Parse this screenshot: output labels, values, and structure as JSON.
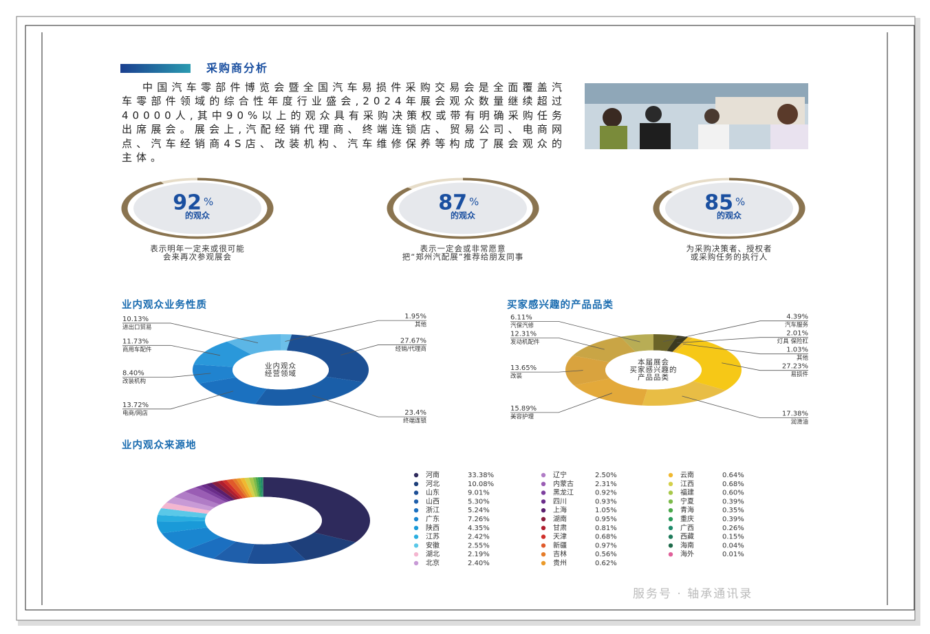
{
  "header": {
    "title": "采购商分析"
  },
  "intro": {
    "text": "中国汽车零部件博览会暨全国汽车易损件采购交易会是全面覆盖汽车零部件领域的综合性年度行业盛会,2024年展会观众数量继续超过40000人,其中90%以上的观众具有采购决策权或带有明确采购任务出席展会。展会上,汽配经销代理商、终端连锁店、贸易公司、电商网点、汽车经销商4S店、改装机构、汽车维修保养等构成了展会观众的主体。"
  },
  "stats": [
    {
      "value": 92,
      "unit": "%",
      "label": "的观众",
      "caption": [
        "表示明年一定来或很可能",
        "会来再次参观展会"
      ]
    },
    {
      "value": 87,
      "unit": "%",
      "label": "的观众",
      "caption": [
        "表示一定会或非常愿意",
        "把“郑州汽配展”推荐给朋友同事"
      ]
    },
    {
      "value": 85,
      "unit": "%",
      "label": "的观众",
      "caption": [
        "为采购决策者、授权者",
        "或采购任务的执行人"
      ]
    }
  ],
  "chart_data": [
    {
      "type": "donut",
      "title": "业内观众业务性质",
      "center_label": [
        "业内观众",
        "经营领域"
      ],
      "categories": [
        "其他",
        "经销/代理商",
        "终端连锁",
        "电商/网店",
        "改装机构",
        "商用车配件",
        "进出口贸易"
      ],
      "values": [
        1.95,
        27.67,
        23.4,
        13.72,
        8.4,
        11.73,
        10.13
      ],
      "value_labels": [
        "1.95%",
        "27.67%",
        "23.4%",
        "13.72%",
        "8.40%",
        "11.73%",
        "10.13%"
      ],
      "colors": [
        "#6cc0ea",
        "#1c4f93",
        "#1a5ea8",
        "#1b71c0",
        "#2083cf",
        "#2a98da",
        "#5cb6e6"
      ]
    },
    {
      "type": "donut",
      "title": "买家感兴趣的产品品类",
      "center_label": [
        "本届展会",
        "买家感兴趣的",
        "产品品类"
      ],
      "categories": [
        "汽车服务",
        "灯具 保险杠",
        "其他",
        "易损件",
        "润滑油",
        "美容护理",
        "改装",
        "发动机配件",
        "汽保汽修"
      ],
      "values": [
        4.39,
        2.01,
        1.03,
        27.23,
        17.38,
        15.89,
        13.65,
        12.31,
        6.11
      ],
      "value_labels": [
        "4.39%",
        "2.01%",
        "1.03%",
        "27.23%",
        "17.38%",
        "15.89%",
        "13.65%",
        "12.31%",
        "6.11%"
      ],
      "colors": [
        "#6b6428",
        "#3c3a20",
        "#e8b92a",
        "#f6c817",
        "#e8bd45",
        "#e3a93a",
        "#d9a33e",
        "#c9a545",
        "#b8ad55"
      ]
    },
    {
      "type": "donut",
      "title": "业内观众来源地",
      "categories": [
        "河南",
        "河北",
        "山东",
        "山西",
        "浙江",
        "广东",
        "陕西",
        "江苏",
        "安徽",
        "湖北",
        "北京",
        "辽宁",
        "内蒙古",
        "黑龙江",
        "四川",
        "上海",
        "湖南",
        "甘肃",
        "天津",
        "新疆",
        "吉林",
        "贵州",
        "云南",
        "江西",
        "福建",
        "宁夏",
        "青海",
        "重庆",
        "广西",
        "西藏",
        "海南",
        "海外"
      ],
      "values": [
        33.38,
        10.08,
        9.01,
        5.3,
        5.24,
        7.26,
        4.35,
        2.42,
        2.55,
        2.19,
        2.4,
        2.5,
        2.31,
        0.92,
        0.93,
        1.05,
        0.95,
        0.81,
        0.68,
        0.97,
        0.56,
        0.62,
        0.64,
        0.68,
        0.6,
        0.39,
        0.35,
        0.39,
        0.26,
        0.15,
        0.04,
        0.01
      ],
      "value_labels": [
        "33.38%",
        "10.08%",
        "9.01%",
        "5.30%",
        "5.24%",
        "7.26%",
        "4.35%",
        "2.42%",
        "2.55%",
        "2.19%",
        "2.40%",
        "2.50%",
        "2.31%",
        "0.92%",
        "0.93%",
        "1.05%",
        "0.95%",
        "0.81%",
        "0.68%",
        "0.97%",
        "0.56%",
        "0.62%",
        "0.64%",
        "0.68%",
        "0.60%",
        "0.39%",
        "0.35%",
        "0.39%",
        "0.26%",
        "0.15%",
        "0.04%",
        "0.01%"
      ],
      "colors": [
        "#2e2a5c",
        "#1e3f7a",
        "#1d4f96",
        "#1f5fab",
        "#1b6fc0",
        "#1a86d0",
        "#1a9ad8",
        "#2aaee0",
        "#5ac8e8",
        "#f4b6d0",
        "#c89ad6",
        "#b07cc6",
        "#9a5db4",
        "#7d3f9e",
        "#6a2c8a",
        "#5a1e6e",
        "#8a1e3c",
        "#b01e2e",
        "#d0302a",
        "#e05a2a",
        "#e57c2a",
        "#eb9a2a",
        "#f0b830",
        "#d4d04a",
        "#a8c84a",
        "#7cba4a",
        "#4aa84a",
        "#2a9a5a",
        "#1e8a6a",
        "#1e7a5a",
        "#1e6a4a",
        "#e0609a"
      ]
    }
  ],
  "watermark": "服务号 · 轴承通讯录"
}
